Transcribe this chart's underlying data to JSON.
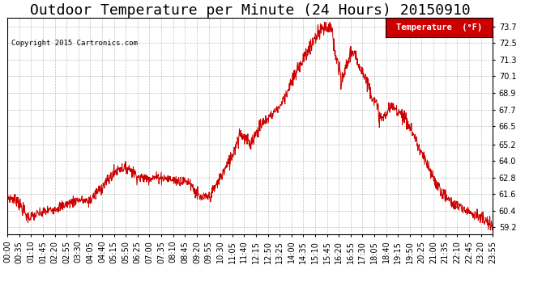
{
  "title": "Outdoor Temperature per Minute (24 Hours) 20150910",
  "copyright_text": "Copyright 2015 Cartronics.com",
  "legend_label": "Temperature  (°F)",
  "legend_bg": "#cc0000",
  "legend_text_color": "#ffffff",
  "line_color": "#cc0000",
  "bg_color": "#ffffff",
  "plot_bg_color": "#ffffff",
  "grid_color": "#bbbbbb",
  "yticks": [
    59.2,
    60.4,
    61.6,
    62.8,
    64.0,
    65.2,
    66.5,
    67.7,
    68.9,
    70.1,
    71.3,
    72.5,
    73.7
  ],
  "ylim": [
    58.7,
    74.3
  ],
  "title_fontsize": 13,
  "tick_label_fontsize": 7,
  "xtick_labels": [
    "00:00",
    "00:35",
    "01:10",
    "01:45",
    "02:20",
    "02:55",
    "03:30",
    "04:05",
    "04:40",
    "05:15",
    "05:50",
    "06:25",
    "07:00",
    "07:35",
    "08:10",
    "08:45",
    "09:20",
    "09:55",
    "10:30",
    "11:05",
    "11:40",
    "12:15",
    "12:50",
    "13:25",
    "14:00",
    "14:35",
    "15:10",
    "15:45",
    "16:20",
    "16:55",
    "17:30",
    "18:05",
    "18:40",
    "19:15",
    "19:50",
    "20:25",
    "21:00",
    "21:35",
    "22:10",
    "22:45",
    "23:20",
    "23:55"
  ]
}
